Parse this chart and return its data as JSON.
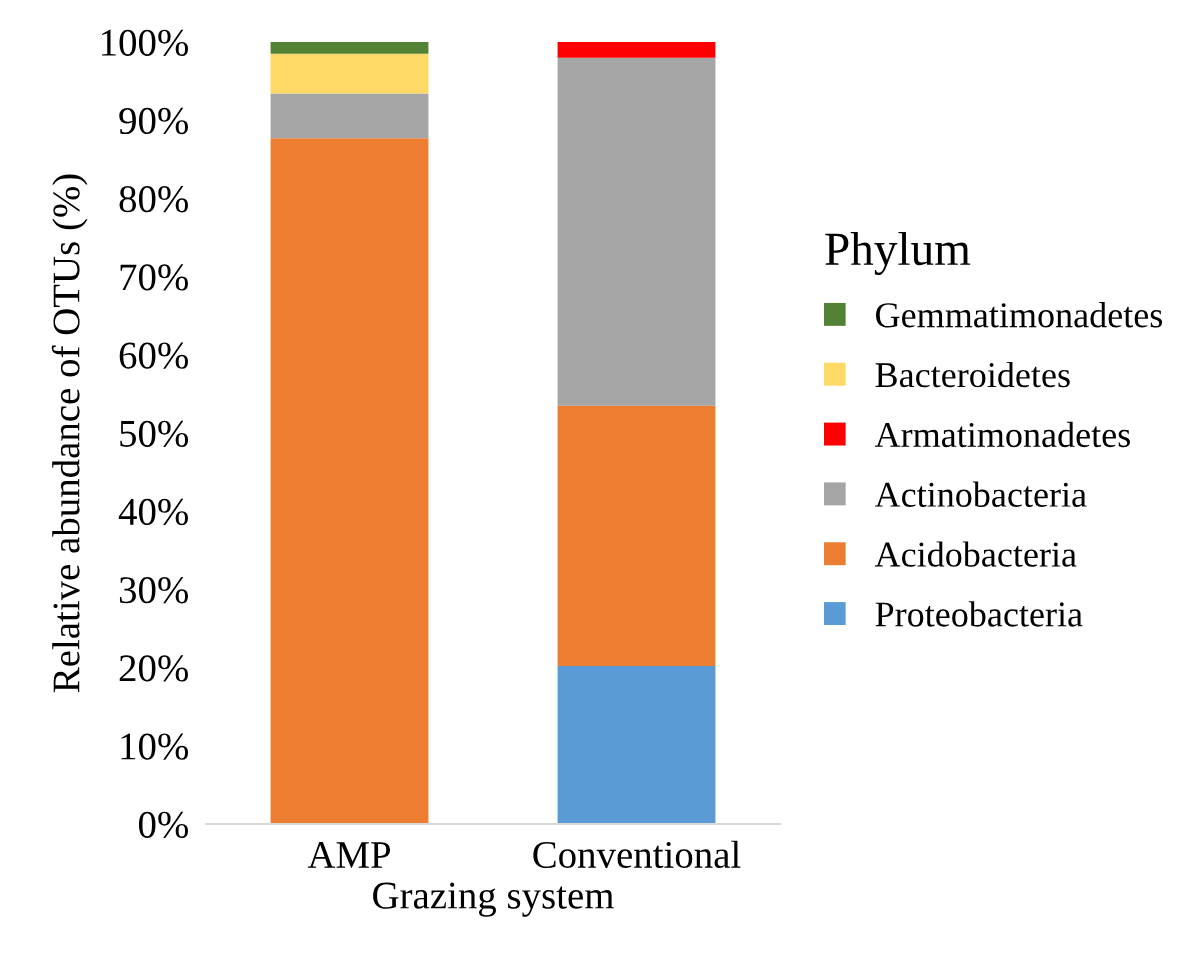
{
  "chart_data": {
    "type": "bar",
    "stacked": true,
    "xlabel": "Grazing system",
    "ylabel": "Relative abundance of OTUs (%)",
    "legend_title": "Phylum",
    "legend": "right",
    "grid": false,
    "categories": [
      "AMP",
      "Conventional"
    ],
    "ylim": [
      0,
      100
    ],
    "yticks": [
      {
        "value": 0,
        "label": "0%"
      },
      {
        "value": 10,
        "label": "10%"
      },
      {
        "value": 20,
        "label": "20%"
      },
      {
        "value": 30,
        "label": "30%"
      },
      {
        "value": 40,
        "label": "40%"
      },
      {
        "value": 50,
        "label": "50%"
      },
      {
        "value": 60,
        "label": "60%"
      },
      {
        "value": 70,
        "label": "70%"
      },
      {
        "value": 80,
        "label": "80%"
      },
      {
        "value": 90,
        "label": "90%"
      },
      {
        "value": 100,
        "label": "100%"
      }
    ],
    "series": [
      {
        "name": "Proteobacteria",
        "color": "#5b9bd5",
        "values": [
          0,
          20.2
        ]
      },
      {
        "name": "Acidobacteria",
        "color": "#ed7d31",
        "values": [
          87.7,
          33.3
        ]
      },
      {
        "name": "Actinobacteria",
        "color": "#a5a5a5",
        "values": [
          5.7,
          44.5
        ]
      },
      {
        "name": "Armatimonadetes",
        "color": "#ff0000",
        "values": [
          0,
          2.0
        ]
      },
      {
        "name": "Bacteroidetes",
        "color": "#ffd966",
        "values": [
          5.1,
          0
        ]
      },
      {
        "name": "Gemmatimonadetes",
        "color": "#548235",
        "values": [
          1.5,
          0
        ]
      }
    ]
  }
}
